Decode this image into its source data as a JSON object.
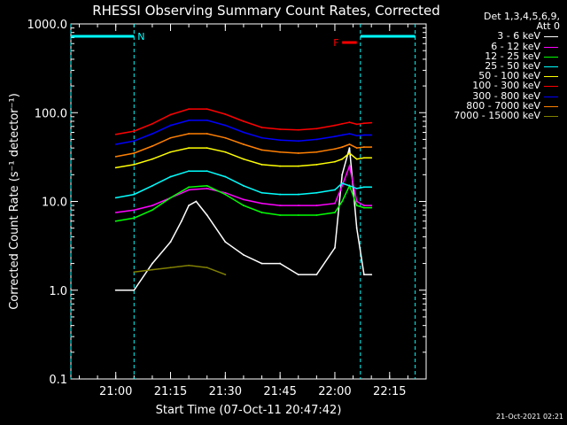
{
  "chart_data": {
    "type": "line",
    "title": "RHESSI Observing Summary Count Rates, Corrected",
    "xlabel": "Start Time (07-Oct-11 20:47:42)",
    "ylabel": "Corrected Count Rate (s⁻¹ detector⁻¹)",
    "yscale": "log",
    "ylim": [
      0.1,
      1000
    ],
    "xlim": [
      "20:47:42",
      "22:25:00"
    ],
    "y_ticks": [
      "0.1",
      "1.0",
      "10.0",
      "100.0",
      "1000.0"
    ],
    "x_ticks": [
      "21:00",
      "21:15",
      "21:30",
      "21:45",
      "22:00",
      "22:15"
    ],
    "legend_title": [
      "Det 1,3,4,5,6,9,",
      "Att 0"
    ],
    "legend_position": "right, outside plot",
    "series": [
      {
        "name": "3 - 6 keV",
        "color": "#ffffff",
        "x": [
          "21:00",
          "21:05",
          "21:10",
          "21:15",
          "21:18",
          "21:20",
          "21:22",
          "21:25",
          "21:30",
          "21:35",
          "21:40",
          "21:45",
          "21:50",
          "21:55",
          "22:00",
          "22:02",
          "22:04",
          "22:06",
          "22:08",
          "22:10"
        ],
        "values": [
          1.0,
          1.0,
          2.0,
          3.5,
          6.0,
          9.0,
          10.0,
          7.0,
          3.5,
          2.5,
          2.0,
          2.0,
          1.5,
          1.5,
          3.0,
          20.0,
          40.0,
          5.0,
          1.5,
          1.5
        ]
      },
      {
        "name": "6 - 12 keV",
        "color": "#ff00ff",
        "x": [
          "21:00",
          "21:05",
          "21:10",
          "21:15",
          "21:20",
          "21:25",
          "21:30",
          "21:35",
          "21:40",
          "21:45",
          "21:50",
          "21:55",
          "22:00",
          "22:02",
          "22:04",
          "22:06",
          "22:08",
          "22:10"
        ],
        "values": [
          7.5,
          8.0,
          9.0,
          11.0,
          13.5,
          14.0,
          12.5,
          10.5,
          9.5,
          9.0,
          9.0,
          9.0,
          9.5,
          15.0,
          25.0,
          10.0,
          9.0,
          9.0
        ]
      },
      {
        "name": "12 - 25 keV",
        "color": "#00ff00",
        "x": [
          "21:00",
          "21:05",
          "21:10",
          "21:15",
          "21:20",
          "21:25",
          "21:30",
          "21:35",
          "21:40",
          "21:45",
          "21:50",
          "21:55",
          "22:00",
          "22:02",
          "22:04",
          "22:06",
          "22:08",
          "22:10"
        ],
        "values": [
          6.0,
          6.5,
          8.0,
          11.0,
          14.5,
          15.0,
          12.0,
          9.0,
          7.5,
          7.0,
          7.0,
          7.0,
          7.5,
          10.0,
          15.0,
          9.0,
          8.5,
          8.5
        ]
      },
      {
        "name": "25 - 50 keV",
        "color": "#00ffff",
        "x": [
          "21:00",
          "21:05",
          "21:10",
          "21:15",
          "21:20",
          "21:25",
          "21:30",
          "21:35",
          "21:40",
          "21:45",
          "21:50",
          "21:55",
          "22:00",
          "22:02",
          "22:04",
          "22:06",
          "22:08",
          "22:10"
        ],
        "values": [
          11.0,
          12.0,
          15.0,
          19.0,
          22.0,
          22.0,
          19.0,
          15.0,
          12.5,
          12.0,
          12.0,
          12.5,
          13.5,
          16.0,
          15.0,
          14.0,
          14.5,
          14.5
        ]
      },
      {
        "name": "50 - 100 keV",
        "color": "#ffff00",
        "x": [
          "21:00",
          "21:05",
          "21:10",
          "21:15",
          "21:20",
          "21:25",
          "21:30",
          "21:35",
          "21:40",
          "21:45",
          "21:50",
          "21:55",
          "22:00",
          "22:02",
          "22:04",
          "22:06",
          "22:08",
          "22:10"
        ],
        "values": [
          24.0,
          26.0,
          30.0,
          36.0,
          40.0,
          40.0,
          36.0,
          30.0,
          26.0,
          25.0,
          25.0,
          26.0,
          28.0,
          30.0,
          35.0,
          30.0,
          31.0,
          31.0
        ]
      },
      {
        "name": "100 - 300 keV",
        "color": "#ff0000",
        "x": [
          "21:00",
          "21:05",
          "21:10",
          "21:15",
          "21:20",
          "21:25",
          "21:30",
          "21:35",
          "21:40",
          "21:45",
          "21:50",
          "21:55",
          "22:00",
          "22:02",
          "22:04",
          "22:06",
          "22:08",
          "22:10"
        ],
        "values": [
          57.0,
          62.0,
          75.0,
          95.0,
          110.0,
          110.0,
          96.0,
          80.0,
          68.0,
          65.0,
          64.0,
          66.0,
          72.0,
          75.0,
          78.0,
          74.0,
          76.0,
          77.0
        ]
      },
      {
        "name": "300 - 800 keV",
        "color": "#0000ff",
        "x": [
          "21:00",
          "21:05",
          "21:10",
          "21:15",
          "21:20",
          "21:25",
          "21:30",
          "21:35",
          "21:40",
          "21:45",
          "21:50",
          "21:55",
          "22:00",
          "22:02",
          "22:04",
          "22:06",
          "22:08",
          "22:10"
        ],
        "values": [
          44.0,
          48.0,
          58.0,
          72.0,
          82.0,
          82.0,
          72.0,
          60.0,
          52.0,
          49.0,
          48.0,
          50.0,
          54.0,
          56.0,
          58.0,
          55.0,
          56.0,
          56.0
        ]
      },
      {
        "name": "800 - 7000 keV",
        "color": "#ff8000",
        "x": [
          "21:00",
          "21:05",
          "21:10",
          "21:15",
          "21:20",
          "21:25",
          "21:30",
          "21:35",
          "21:40",
          "21:45",
          "21:50",
          "21:55",
          "22:00",
          "22:02",
          "22:04",
          "22:06",
          "22:08",
          "22:10"
        ],
        "values": [
          32.0,
          35.0,
          42.0,
          52.0,
          58.0,
          58.0,
          52.0,
          44.0,
          38.0,
          36.0,
          35.0,
          36.0,
          39.0,
          41.0,
          44.0,
          40.0,
          41.0,
          41.0
        ]
      },
      {
        "name": "7000 - 15000 keV",
        "color": "#808000",
        "x": [
          "21:05",
          "21:10",
          "21:15",
          "21:20",
          "21:25",
          "21:30"
        ],
        "values": [
          1.6,
          1.7,
          1.8,
          1.9,
          1.8,
          1.5
        ]
      }
    ],
    "annotations": [
      {
        "text": "N",
        "color": "#00ffff",
        "from": "20:47:42",
        "to": "21:05"
      },
      {
        "text": "",
        "color": "#00ffff",
        "from": "22:07",
        "to": "22:22"
      },
      {
        "text": "F",
        "color": "#ff0000",
        "from": "22:02",
        "to": "22:06"
      }
    ]
  },
  "timestamp": "21-Oct-2021 02:21"
}
